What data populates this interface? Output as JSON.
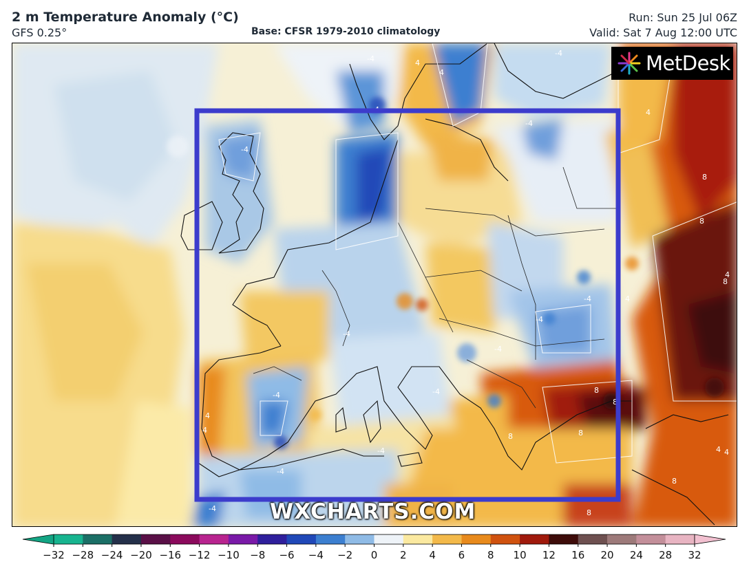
{
  "header": {
    "title": "2 m Temperature Anomaly (°C)",
    "model": "GFS 0.25°",
    "base": "Base: CFSR 1979-2010 climatology",
    "run": "Run: Sun 25 Jul 06Z",
    "valid": "Valid: Sat 7 Aug 12:00 UTC"
  },
  "logo": {
    "text": "MetDesk"
  },
  "watermark": "WXCHARTS.COM",
  "highlight_box_color": "#3c3ccc",
  "colorbar": {
    "ticks": [
      "−32",
      "−28",
      "−24",
      "−20",
      "−16",
      "−12",
      "−10",
      "−8",
      "−6",
      "−4",
      "−2",
      "0",
      "2",
      "4",
      "6",
      "8",
      "10",
      "12",
      "16",
      "20",
      "24",
      "28",
      "32"
    ],
    "colors": [
      "#17b48f",
      "#1b6f66",
      "#24304a",
      "#5a1047",
      "#8b0a5c",
      "#b8248f",
      "#7a1aa8",
      "#2f1f9c",
      "#2048b8",
      "#3c7fd0",
      "#8fbbe6",
      "#eef3f8",
      "#fbe9a0",
      "#f3b94a",
      "#e88a1c",
      "#d0520f",
      "#a01a0c",
      "#3e0c0a",
      "#6e5050",
      "#9d7a7a",
      "#c38f9a",
      "#e8b4c2"
    ],
    "end_left_color": "#13a584",
    "end_right_color": "#f2c0d0"
  },
  "contour_labels": [
    "-4",
    "4",
    "-4",
    "-4",
    "-4",
    "4",
    "-4",
    "4",
    "8",
    "8",
    "-4",
    "4",
    "-4",
    "8",
    "4",
    "-4",
    "8",
    "8",
    "8",
    "8",
    "4",
    "-4",
    "-4",
    "-4",
    "-4",
    "8",
    "-4",
    "4",
    "4",
    "8",
    "4",
    "-4"
  ]
}
